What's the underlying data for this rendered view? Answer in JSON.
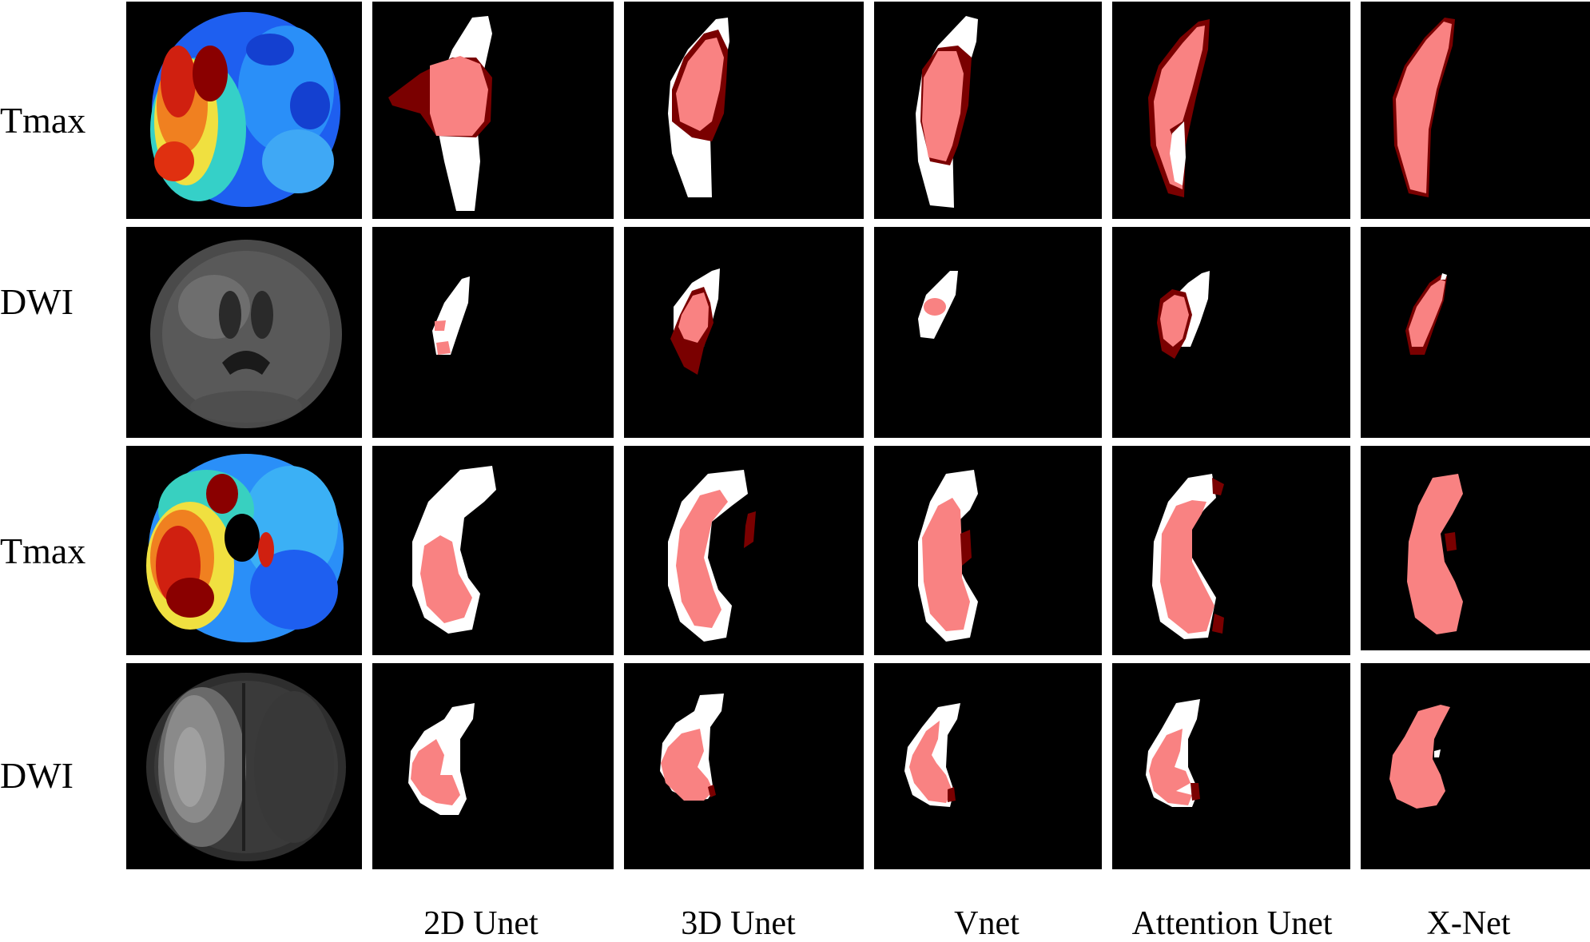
{
  "figure": {
    "row_labels": [
      "Tmax",
      "DWI",
      "Tmax",
      "DWI"
    ],
    "column_labels": [
      "2D Unet",
      "3D Unet",
      "Vnet",
      "Attention Unet",
      "X-Net"
    ],
    "legend_colors": {
      "ground_truth": "#ffffff",
      "overlap": "#f98282",
      "false_positive": "#7a0000",
      "background": "#000000"
    }
  }
}
